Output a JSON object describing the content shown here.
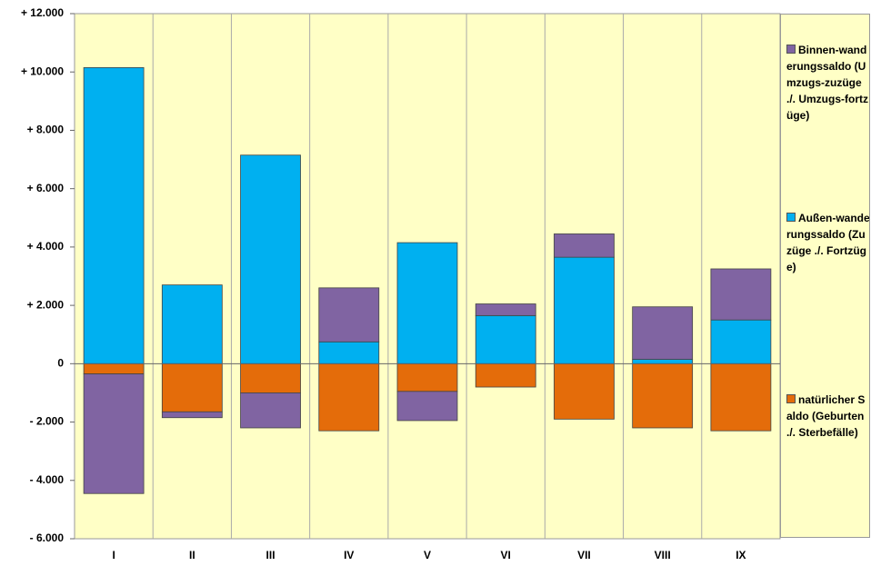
{
  "chart_data": {
    "type": "bar",
    "stacked": true,
    "categories": [
      "I",
      "II",
      "III",
      "IV",
      "V",
      "VI",
      "VII",
      "VIII",
      "IX"
    ],
    "series": [
      {
        "name": "Binnen-wanderungssaldo (Umzugs-zuzüge ./. Umzugs-fortzüge)",
        "color": "#8064a2",
        "values": [
          -4100,
          -200,
          -1200,
          1850,
          -1000,
          400,
          800,
          1800,
          1750
        ]
      },
      {
        "name": "Außen-wanderungssaldo (Zuzüge ./. Fortzüge)",
        "color": "#00b0f0",
        "values": [
          10150,
          2700,
          7150,
          750,
          4150,
          1650,
          3650,
          150,
          1500
        ]
      },
      {
        "name": "natürlicher Saldo (Geburten ./. Sterbefälle)",
        "color": "#e46c0a",
        "values": [
          -350,
          -1650,
          -1000,
          -2300,
          -950,
          -800,
          -1900,
          -2200,
          -2300
        ]
      }
    ],
    "ylim": [
      -6000,
      12000
    ],
    "yticks": [
      {
        "value": -6000,
        "label": "- 6.000"
      },
      {
        "value": -4000,
        "label": "- 4.000"
      },
      {
        "value": -2000,
        "label": "- 2.000"
      },
      0,
      {
        "value": 2000,
        "label": "+ 2.000"
      },
      {
        "value": 4000,
        "label": "+ 4.000"
      },
      {
        "value": 6000,
        "label": "+ 6.000"
      },
      {
        "value": 8000,
        "label": "+ 8.000"
      },
      {
        "value": 10000,
        "label": "+ 10.000"
      },
      {
        "value": 12000,
        "label": "+ 12.000"
      }
    ],
    "legend": "right"
  }
}
